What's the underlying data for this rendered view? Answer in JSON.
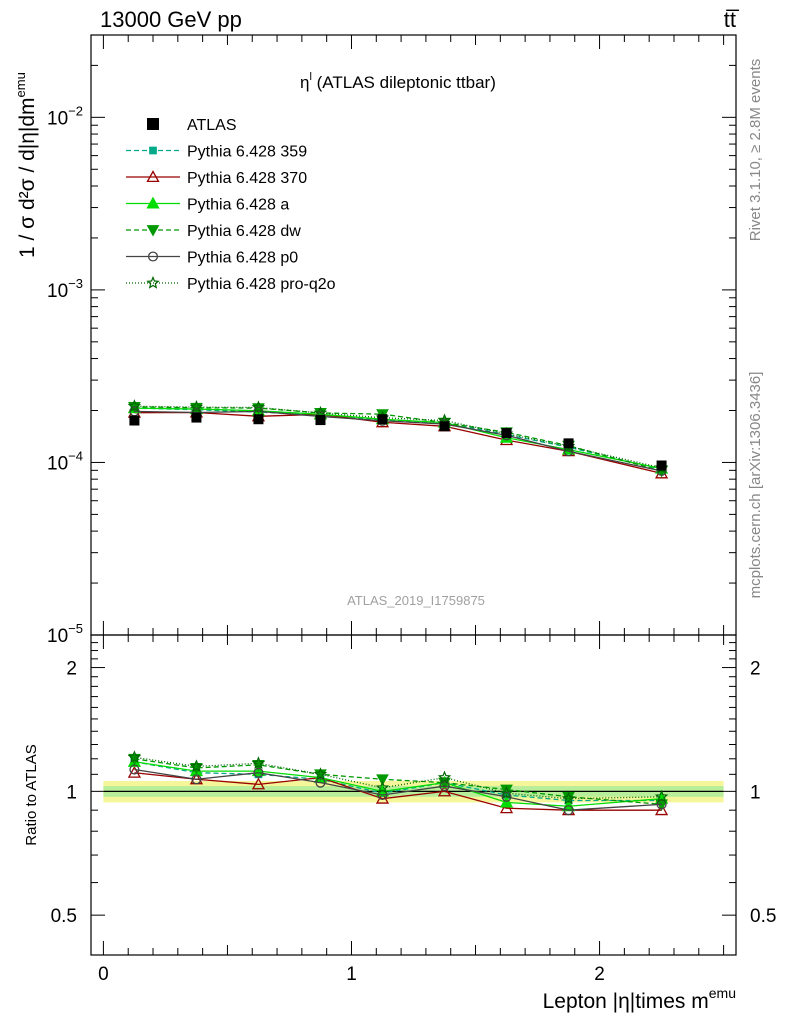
{
  "header": {
    "left": "13000 GeV pp",
    "right": "tt̅"
  },
  "side_labels": {
    "upper": "Rivet 3.1.10, ≥ 2.8M events",
    "lower": "mcplots.cern.ch [arXiv:1306.3436]"
  },
  "watermark": "ATLAS_2019_I1759875",
  "chart_data": {
    "type": "line",
    "title_main": "η",
    "title_sup": "l",
    "title_rest": " (ATLAS dileptonic ttbar)",
    "xlabel_main": "Lepton |η|times m",
    "xlabel_sup": "emu",
    "ylabel_upper": "1 / σ d²σ / d|η|dm",
    "ylabel_upper_sup": "emu",
    "ylabel_lower": "Ratio to ATLAS",
    "xlim": [
      -0.05,
      2.55
    ],
    "ylim_upper": [
      1e-05,
      0.03
    ],
    "yscale_upper": "log",
    "ylim_lower": [
      0.4,
      2.4
    ],
    "yscale_lower": "log",
    "x_ticks": [
      "0",
      "1",
      "2"
    ],
    "y_ticks_upper": [
      {
        "base": "10",
        "exp": "−5",
        "value": 1e-05
      },
      {
        "base": "10",
        "exp": "−4",
        "value": 0.0001
      },
      {
        "base": "10",
        "exp": "−3",
        "value": 0.001
      },
      {
        "base": "10",
        "exp": "−2",
        "value": 0.01
      }
    ],
    "y_ticks_lower": [
      {
        "label": "0.5",
        "value": 0.5
      },
      {
        "label": "1",
        "value": 1
      },
      {
        "label": "2",
        "value": 2
      }
    ],
    "x": [
      0.125,
      0.375,
      0.625,
      0.875,
      1.125,
      1.375,
      1.625,
      1.875,
      2.25
    ],
    "data": {
      "name": "ATLAS",
      "color": "#000000",
      "values": [
        0.000175,
        0.000182,
        0.000178,
        0.000176,
        0.000178,
        0.000162,
        0.000148,
        0.000129,
        9.6e-05
      ],
      "band_inner": 0.03,
      "band_outer": 0.06
    },
    "series": [
      {
        "name": "Pythia 6.428 359",
        "color": "#00aa88",
        "marker": "square-small",
        "dash": "5,3",
        "ratio": [
          1.18,
          1.11,
          1.1,
          1.07,
          0.99,
          1.05,
          0.98,
          0.95,
          0.95
        ]
      },
      {
        "name": "Pythia 6.428 370",
        "color": "#990000",
        "marker": "triangle-open",
        "dash": "",
        "ratio": [
          1.11,
          1.07,
          1.04,
          1.08,
          0.96,
          1.0,
          0.91,
          0.9,
          0.9
        ]
      },
      {
        "name": "Pythia 6.428 a",
        "color": "#00dd00",
        "marker": "triangle-filled",
        "dash": "",
        "ratio": [
          1.18,
          1.12,
          1.12,
          1.08,
          1.0,
          1.05,
          0.94,
          0.92,
          0.96
        ]
      },
      {
        "name": "Pythia 6.428 dw",
        "color": "#009900",
        "marker": "triangle-down",
        "dash": "5,3",
        "ratio": [
          1.2,
          1.14,
          1.16,
          1.1,
          1.07,
          1.05,
          1.01,
          0.97,
          0.93
        ]
      },
      {
        "name": "Pythia 6.428 p0",
        "color": "#444444",
        "marker": "circle-open",
        "dash": "",
        "ratio": [
          1.13,
          1.07,
          1.11,
          1.05,
          0.98,
          1.03,
          0.97,
          0.9,
          0.93
        ]
      },
      {
        "name": "Pythia 6.428 pro-q2o",
        "color": "#006600",
        "marker": "star-open",
        "dash": "1,2",
        "ratio": [
          1.21,
          1.15,
          1.17,
          1.1,
          1.02,
          1.08,
          0.99,
          0.96,
          0.97
        ]
      }
    ]
  }
}
